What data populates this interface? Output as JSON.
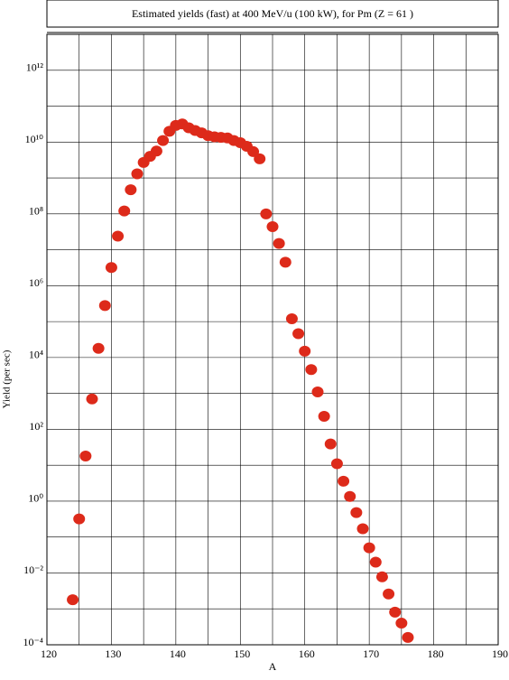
{
  "chart_data": {
    "type": "scatter",
    "title": "Estimated yields (fast) at 400 MeV/u (100 kW), for Pm (Z = 61 )",
    "xlabel": "A",
    "ylabel": "Yield (per sec)",
    "xlim": [
      120,
      190
    ],
    "xticks": [
      120,
      130,
      140,
      150,
      160,
      170,
      180,
      190
    ],
    "xminorticks": [
      125,
      135,
      145,
      155,
      165,
      175,
      185
    ],
    "ylim": [
      0.0001,
      10000000000000.0
    ],
    "yscale": "log",
    "yticks": [
      {
        "value": 0.0001,
        "label": "10⁻⁴"
      },
      {
        "value": 0.01,
        "label": "10⁻²"
      },
      {
        "value": 1,
        "label": "10⁰"
      },
      {
        "value": 100,
        "label": "10²"
      },
      {
        "value": 10000,
        "label": "10⁴"
      },
      {
        "value": 1000000,
        "label": "10⁶"
      },
      {
        "value": 100000000,
        "label": "10⁸"
      },
      {
        "value": 10000000000,
        "label": "10¹⁰"
      },
      {
        "value": 1000000000000,
        "label": "10¹²"
      }
    ],
    "yminorticks": [
      0.001,
      0.1,
      10,
      1000,
      100000,
      10000000,
      1000000000,
      100000000000,
      10000000000000
    ],
    "grid": true,
    "color": "#dd2a1a",
    "x": [
      124,
      125,
      126,
      127,
      128,
      129,
      130,
      131,
      132,
      133,
      134,
      135,
      136,
      137,
      138,
      139,
      140,
      141,
      142,
      143,
      144,
      145,
      146,
      147,
      148,
      149,
      150,
      151,
      152,
      153,
      154,
      155,
      156,
      157,
      158,
      159,
      160,
      161,
      162,
      163,
      164,
      165,
      166,
      167,
      168,
      169,
      170,
      171,
      172,
      173,
      174,
      175,
      176
    ],
    "values": [
      0.0018,
      0.32,
      18,
      700,
      18000,
      280000,
      3200000,
      24000000,
      120000000,
      470000000,
      1300000000,
      2700000000,
      4000000000,
      5600000000,
      11000000000,
      20000000000,
      29000000000,
      32000000000,
      25000000000,
      21000000000,
      18000000000,
      15000000000,
      14000000000,
      13500000000,
      13000000000,
      11000000000,
      9600000000,
      7600000000,
      5400000000,
      3400000000,
      100000000,
      44000000,
      15000000,
      4500000,
      120000,
      46000,
      15000,
      4600,
      1100,
      230,
      39,
      11,
      3.6,
      1.35,
      0.48,
      0.17,
      0.05,
      0.02,
      0.0078,
      0.0026,
      0.00081,
      0.0004,
      0.00016
    ]
  }
}
